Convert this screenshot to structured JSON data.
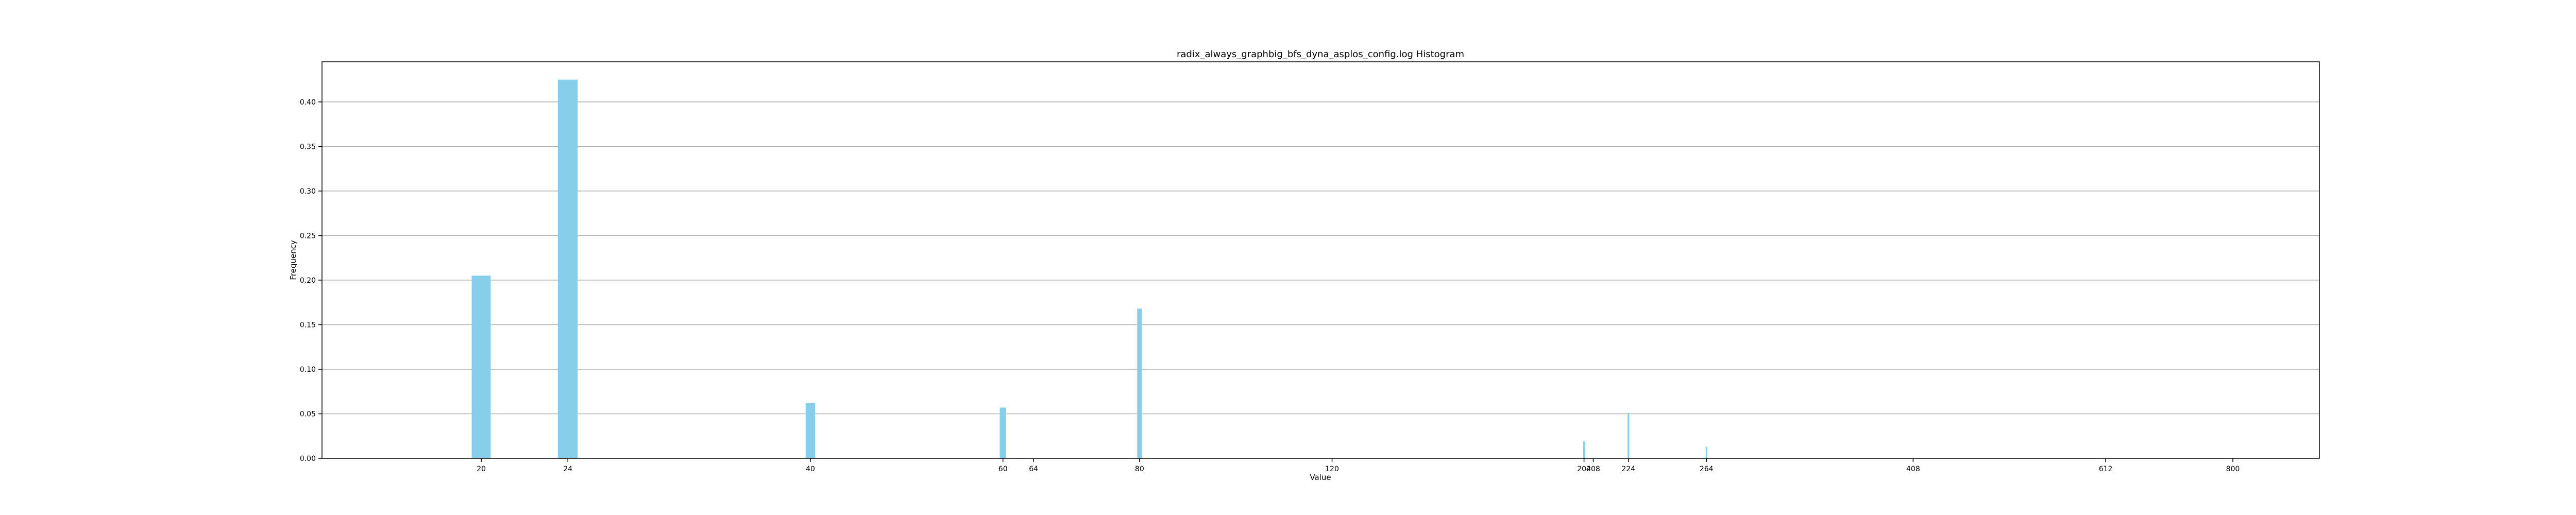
{
  "chart_data": {
    "type": "bar",
    "title": "radix_always_graphbig_bfs_dyna_asplos_config.log Histogram",
    "xlabel": "Value",
    "ylabel": "Frequency",
    "x_scale": "log",
    "xlim": [
      14.3,
      960
    ],
    "ylim": [
      0,
      0.445
    ],
    "grid": {
      "y": true,
      "x": false
    },
    "bar_color": "#87ceeb",
    "x_ticks": [
      {
        "value": 20,
        "label": "20"
      },
      {
        "value": 24,
        "label": "24"
      },
      {
        "value": 40,
        "label": "40"
      },
      {
        "value": 60,
        "label": "60"
      },
      {
        "value": 64,
        "label": "64"
      },
      {
        "value": 80,
        "label": "80"
      },
      {
        "value": 120,
        "label": "120"
      },
      {
        "value": 204,
        "label": "204"
      },
      {
        "value": 208,
        "label": "208"
      },
      {
        "value": 224,
        "label": "224"
      },
      {
        "value": 264,
        "label": "264"
      },
      {
        "value": 408,
        "label": "408"
      },
      {
        "value": 612,
        "label": "612"
      },
      {
        "value": 800,
        "label": "800"
      }
    ],
    "y_ticks": [
      {
        "value": 0.0,
        "label": "0.00"
      },
      {
        "value": 0.05,
        "label": "0.05"
      },
      {
        "value": 0.1,
        "label": "0.10"
      },
      {
        "value": 0.15,
        "label": "0.15"
      },
      {
        "value": 0.2,
        "label": "0.20"
      },
      {
        "value": 0.25,
        "label": "0.25"
      },
      {
        "value": 0.3,
        "label": "0.30"
      },
      {
        "value": 0.35,
        "label": "0.35"
      },
      {
        "value": 0.4,
        "label": "0.40"
      }
    ],
    "bars": [
      {
        "x": 20,
        "value": 0.205,
        "x_start": 19.6,
        "x_end": 20.4
      },
      {
        "x": 24,
        "value": 0.425,
        "x_start": 23.5,
        "x_end": 24.5
      },
      {
        "x": 40,
        "value": 0.062,
        "x_start": 39.6,
        "x_end": 40.4
      },
      {
        "x": 60,
        "value": 0.057,
        "x_start": 59.6,
        "x_end": 60.4
      },
      {
        "x": 80,
        "value": 0.168,
        "x_start": 79.6,
        "x_end": 80.4
      },
      {
        "x": 204,
        "value": 0.019,
        "x_start": 203.6,
        "x_end": 204.4
      },
      {
        "x": 224,
        "value": 0.051,
        "x_start": 223.6,
        "x_end": 224.4
      },
      {
        "x": 264,
        "value": 0.013,
        "x_start": 263.6,
        "x_end": 264.4
      }
    ]
  }
}
